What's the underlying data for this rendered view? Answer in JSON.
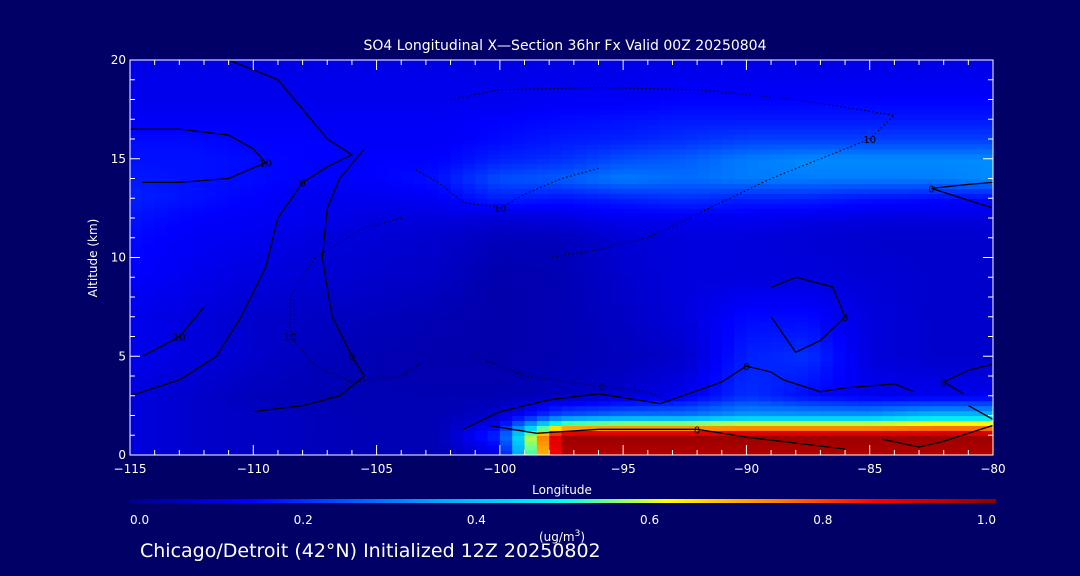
{
  "chart_data": {
    "type": "heatmap",
    "title": "SO4 Longitudinal X—Section 36hr  Fx Valid 00Z 20250804",
    "xlabel": "Longitude",
    "ylabel": "Altitude (km)",
    "xlim": [
      -115,
      -80
    ],
    "ylim": [
      0,
      20
    ],
    "x_ticks": [
      -115,
      -110,
      -105,
      -100,
      -95,
      -90,
      -85,
      -80
    ],
    "x_tick_labels": [
      "−115",
      "−110",
      "−105",
      "−100",
      "−95",
      "−90",
      "−85",
      "−80"
    ],
    "y_ticks": [
      0,
      5,
      10,
      15,
      20
    ],
    "y_tick_labels": [
      "0",
      "5",
      "10",
      "15",
      "20"
    ],
    "colorbar": {
      "min": 0.0,
      "max": 1.0,
      "ticks": [
        0.0,
        0.2,
        0.4,
        0.6,
        0.8,
        1.0
      ],
      "tick_labels": [
        "0.0",
        "0.2",
        "0.4",
        "0.6",
        "0.8",
        "1.0"
      ],
      "units": "(ug/m",
      "units_exp": "3",
      "units_close": ")",
      "colors": [
        "#00008a",
        "#0000ff",
        "#00aaff",
        "#00ffee",
        "#ffff00",
        "#ff8800",
        "#ff0000",
        "#8a0000"
      ]
    },
    "field_x": [
      -115,
      -112.5,
      -110,
      -107.5,
      -105,
      -102.5,
      -100,
      -97.5,
      -95,
      -92.5,
      -90,
      -87.5,
      -85,
      -82.5,
      -80
    ],
    "field_y": [
      0,
      1,
      2,
      3,
      5,
      7,
      9,
      11,
      12,
      13,
      14,
      15,
      16,
      17,
      18,
      20
    ],
    "field_values": [
      [
        0.1,
        0.08,
        0.07,
        0.06,
        0.05,
        0.05,
        0.1,
        0.95,
        0.95,
        0.95,
        0.95,
        0.95,
        0.95,
        0.95,
        0.95
      ],
      [
        0.1,
        0.08,
        0.07,
        0.06,
        0.05,
        0.05,
        0.2,
        0.98,
        0.98,
        0.98,
        0.98,
        0.98,
        0.98,
        0.98,
        0.98
      ],
      [
        0.1,
        0.08,
        0.07,
        0.06,
        0.05,
        0.05,
        0.08,
        0.25,
        0.3,
        0.3,
        0.35,
        0.35,
        0.35,
        0.4,
        0.4
      ],
      [
        0.1,
        0.08,
        0.06,
        0.05,
        0.05,
        0.05,
        0.05,
        0.06,
        0.08,
        0.12,
        0.2,
        0.15,
        0.12,
        0.12,
        0.12
      ],
      [
        0.12,
        0.1,
        0.08,
        0.06,
        0.05,
        0.04,
        0.04,
        0.05,
        0.06,
        0.08,
        0.18,
        0.2,
        0.1,
        0.08,
        0.08
      ],
      [
        0.12,
        0.1,
        0.08,
        0.07,
        0.06,
        0.05,
        0.04,
        0.05,
        0.07,
        0.1,
        0.15,
        0.15,
        0.1,
        0.08,
        0.08
      ],
      [
        0.14,
        0.12,
        0.1,
        0.09,
        0.08,
        0.07,
        0.04,
        0.05,
        0.08,
        0.1,
        0.1,
        0.1,
        0.09,
        0.08,
        0.08
      ],
      [
        0.15,
        0.13,
        0.12,
        0.1,
        0.09,
        0.08,
        0.06,
        0.06,
        0.09,
        0.1,
        0.1,
        0.09,
        0.08,
        0.08,
        0.08
      ],
      [
        0.16,
        0.14,
        0.13,
        0.12,
        0.1,
        0.1,
        0.09,
        0.1,
        0.12,
        0.12,
        0.12,
        0.11,
        0.1,
        0.1,
        0.1
      ],
      [
        0.18,
        0.16,
        0.14,
        0.12,
        0.12,
        0.13,
        0.18,
        0.16,
        0.18,
        0.2,
        0.18,
        0.18,
        0.16,
        0.15,
        0.15
      ],
      [
        0.17,
        0.16,
        0.15,
        0.14,
        0.14,
        0.16,
        0.24,
        0.26,
        0.3,
        0.28,
        0.3,
        0.3,
        0.3,
        0.3,
        0.32
      ],
      [
        0.16,
        0.16,
        0.15,
        0.14,
        0.14,
        0.14,
        0.18,
        0.2,
        0.24,
        0.26,
        0.3,
        0.32,
        0.32,
        0.32,
        0.32
      ],
      [
        0.15,
        0.15,
        0.14,
        0.14,
        0.13,
        0.13,
        0.15,
        0.17,
        0.18,
        0.2,
        0.22,
        0.22,
        0.22,
        0.22,
        0.22
      ],
      [
        0.13,
        0.13,
        0.13,
        0.13,
        0.13,
        0.13,
        0.14,
        0.15,
        0.16,
        0.17,
        0.17,
        0.17,
        0.17,
        0.17,
        0.17
      ],
      [
        0.12,
        0.12,
        0.12,
        0.12,
        0.12,
        0.12,
        0.12,
        0.13,
        0.13,
        0.14,
        0.14,
        0.14,
        0.14,
        0.14,
        0.14
      ],
      [
        0.11,
        0.11,
        0.11,
        0.11,
        0.11,
        0.11,
        0.11,
        0.11,
        0.11,
        0.11,
        0.11,
        0.11,
        0.11,
        0.11,
        0.11
      ]
    ],
    "contours": [
      {
        "label": "10",
        "style": "solid",
        "points": [
          [
            -115,
            16.5
          ],
          [
            -113,
            16.5
          ],
          [
            -111,
            16.2
          ],
          [
            -110,
            15.5
          ],
          [
            -109.5,
            14.8
          ],
          [
            -111,
            14
          ],
          [
            -113,
            13.8
          ],
          [
            -114.5,
            13.8
          ]
        ]
      },
      {
        "label": "0",
        "style": "solid",
        "points": [
          [
            -111,
            20
          ],
          [
            -109,
            19
          ],
          [
            -108,
            17.5
          ],
          [
            -107,
            16
          ],
          [
            -106,
            15.2
          ],
          [
            -107,
            14.6
          ],
          [
            -108,
            13.8
          ],
          [
            -109,
            12
          ],
          [
            -109.5,
            9.5
          ],
          [
            -110.5,
            7
          ],
          [
            -111.5,
            5
          ],
          [
            -113,
            3.8
          ],
          [
            -115,
            3
          ]
        ]
      },
      {
        "label": "10",
        "style": "solid",
        "points": [
          [
            -112,
            7.5
          ],
          [
            -113,
            6
          ],
          [
            -114.5,
            5
          ]
        ]
      },
      {
        "label": "0",
        "style": "solid",
        "points": [
          [
            -105.5,
            15.5
          ],
          [
            -106.5,
            14
          ],
          [
            -107,
            12.5
          ],
          [
            -107.2,
            10
          ],
          [
            -106.8,
            7
          ],
          [
            -106,
            5
          ],
          [
            -105.5,
            4
          ],
          [
            -106.5,
            3
          ],
          [
            -108,
            2.5
          ],
          [
            -110,
            2.2
          ]
        ]
      },
      {
        "label": "10",
        "style": "dotted",
        "points": [
          [
            -102,
            18
          ],
          [
            -100,
            18.5
          ],
          [
            -96,
            18.6
          ],
          [
            -92,
            18.5
          ],
          [
            -88,
            18
          ],
          [
            -84,
            17.2
          ],
          [
            -85,
            16
          ],
          [
            -87,
            15
          ],
          [
            -89,
            14
          ],
          [
            -91.5,
            12.5
          ],
          [
            -94,
            11
          ],
          [
            -96,
            10.4
          ],
          [
            -98,
            10
          ]
        ]
      },
      {
        "label": "10",
        "style": "dotted",
        "points": [
          [
            -96,
            14.5
          ],
          [
            -97.5,
            14
          ],
          [
            -99,
            13.2
          ],
          [
            -100,
            12.5
          ],
          [
            -101.5,
            12.8
          ],
          [
            -102.5,
            13.8
          ],
          [
            -103.5,
            14.5
          ]
        ]
      },
      {
        "label": "10",
        "style": "dotted",
        "points": [
          [
            -104,
            12
          ],
          [
            -105.5,
            11.5
          ],
          [
            -107.5,
            10
          ],
          [
            -108.5,
            8
          ],
          [
            -108.5,
            6
          ],
          [
            -107.5,
            4.5
          ],
          [
            -106,
            3.7
          ],
          [
            -104,
            4
          ],
          [
            -103,
            4.8
          ]
        ]
      },
      {
        "label": "10",
        "style": "dotted",
        "points": [
          [
            -101,
            5
          ],
          [
            -99,
            4
          ],
          [
            -96,
            3.5
          ],
          [
            -94,
            3.2
          ],
          [
            -93,
            2.6
          ]
        ]
      },
      {
        "label": "0",
        "style": "solid",
        "points": [
          [
            -101.5,
            1.3
          ],
          [
            -100,
            2.2
          ],
          [
            -98,
            2.8
          ],
          [
            -96,
            3.1
          ],
          [
            -93.5,
            2.6
          ],
          [
            -91,
            3.7
          ],
          [
            -90,
            4.5
          ],
          [
            -89,
            4.2
          ],
          [
            -88.5,
            3.8
          ],
          [
            -87,
            3.2
          ],
          [
            -86,
            3.4
          ],
          [
            -84,
            3.6
          ],
          [
            -83.2,
            3.2
          ]
        ]
      },
      {
        "label": "",
        "style": "solid",
        "points": [
          [
            -81,
            2.5
          ],
          [
            -80,
            1.8
          ]
        ]
      },
      {
        "label": "0",
        "style": "solid",
        "points": [
          [
            -89,
            8.5
          ],
          [
            -88,
            9
          ],
          [
            -86.5,
            8.5
          ],
          [
            -86,
            7
          ],
          [
            -87,
            5.8
          ],
          [
            -88,
            5.2
          ],
          [
            -89,
            7
          ]
        ]
      },
      {
        "label": "0",
        "style": "solid",
        "points": [
          [
            -80,
            13.8
          ],
          [
            -81,
            13.7
          ],
          [
            -82.5,
            13.5
          ],
          [
            -81,
            12.9
          ],
          [
            -80,
            12.5
          ]
        ]
      },
      {
        "label": "0",
        "style": "solid",
        "points": [
          [
            -100.5,
            1.5
          ],
          [
            -98.5,
            1.1
          ],
          [
            -96,
            1.3
          ],
          [
            -92,
            1.3
          ],
          [
            -90,
            0.9
          ],
          [
            -88,
            0.6
          ],
          [
            -86,
            0.3
          ]
        ]
      },
      {
        "label": "",
        "style": "solid",
        "points": [
          [
            -84.5,
            0.8
          ],
          [
            -83,
            0.4
          ],
          [
            -82,
            0.7
          ],
          [
            -81,
            1.1
          ],
          [
            -80,
            1.5
          ]
        ]
      },
      {
        "label": "0",
        "style": "solid",
        "points": [
          [
            -80,
            4.6
          ],
          [
            -81,
            4.3
          ],
          [
            -82,
            3.7
          ],
          [
            -81.2,
            3.1
          ]
        ]
      }
    ]
  },
  "footer": {
    "subtitle": "Chicago/Detroit (42°N) Initialized 12Z 20250802"
  }
}
